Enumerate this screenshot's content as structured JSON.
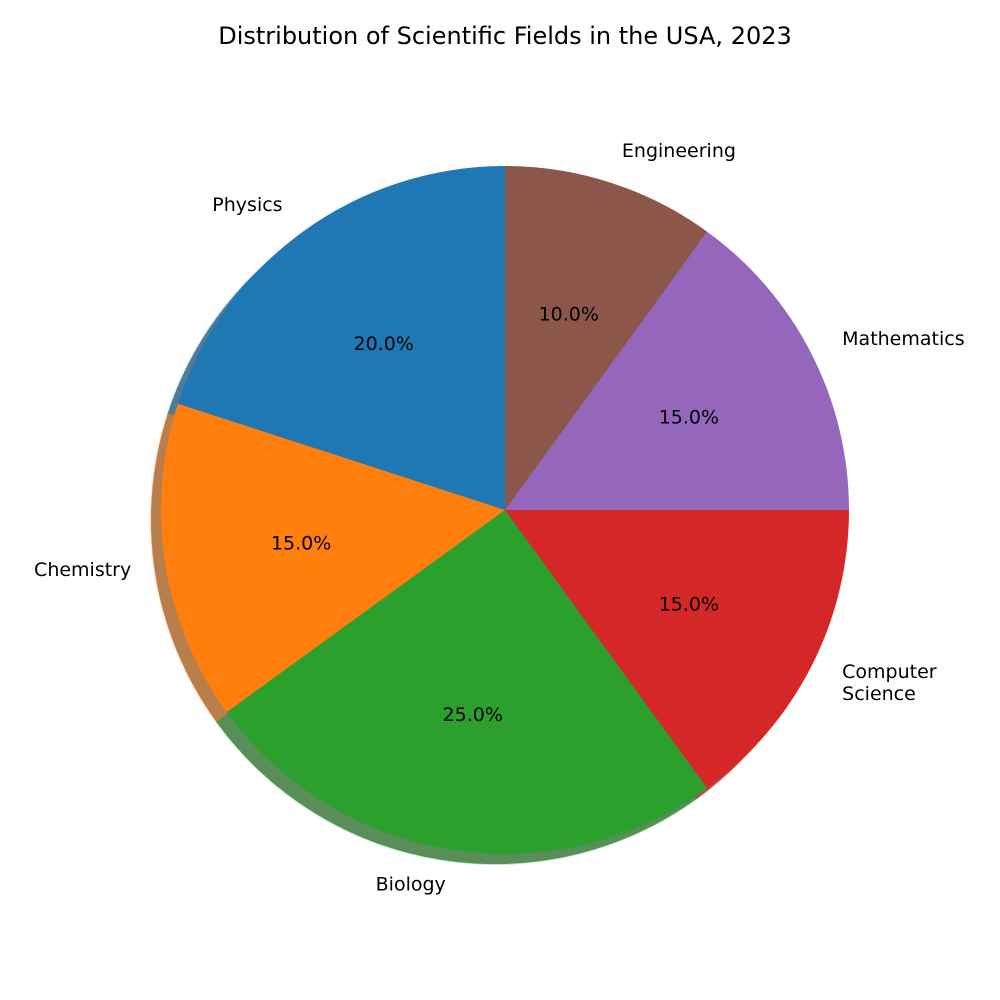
{
  "chart_data": {
    "type": "pie",
    "title": "Distribution of Scientific Fields in the USA, 2023",
    "slices": [
      {
        "label": "Physics",
        "value": 20.0,
        "pct_label": "20.0%",
        "color": "#1f77b4"
      },
      {
        "label": "Chemistry",
        "value": 15.0,
        "pct_label": "15.0%",
        "color": "#ff7f0e"
      },
      {
        "label": "Biology",
        "value": 25.0,
        "pct_label": "25.0%",
        "color": "#2ca02c"
      },
      {
        "label": "Computer Science",
        "value": 15.0,
        "pct_label": "15.0%",
        "color": "#d62728",
        "label_lines": [
          "Computer",
          "Science"
        ]
      },
      {
        "label": "Mathematics",
        "value": 15.0,
        "pct_label": "15.0%",
        "color": "#9467bd"
      },
      {
        "label": "Engineering",
        "value": 10.0,
        "pct_label": "10.0%",
        "color": "#8c564b"
      }
    ],
    "start_angle": 90,
    "direction": "counterclockwise",
    "shadow": true,
    "legend": "none"
  }
}
